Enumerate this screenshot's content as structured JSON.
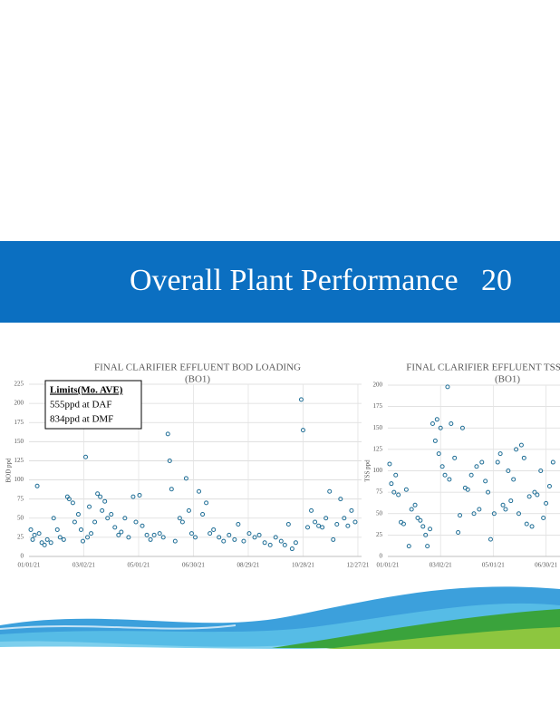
{
  "header": {
    "title": "Overall Plant Performance   20"
  },
  "chart_data": [
    {
      "type": "scatter",
      "title": "FINAL CLARIFIER EFFLUENT BOD LOADING",
      "subtitle": "(BO1)",
      "y_label": "BOD ppd",
      "annotation": [
        "Limits(Mo.    AVE)",
        "555ppd at DAF",
        "834ppd at DMF"
      ],
      "color": "#1f6e96",
      "grid": true,
      "xlim": [
        "2021-01-01",
        "2021-12-31"
      ],
      "xticks": [
        {
          "value": "2021-01-01",
          "label": "01/01/21"
        },
        {
          "value": "2021-03-02",
          "label": "03/02/21"
        },
        {
          "value": "2021-05-01",
          "label": "05/01/21"
        },
        {
          "value": "2021-06-30",
          "label": "06/30/21"
        },
        {
          "value": "2021-08-29",
          "label": "08/29/21"
        },
        {
          "value": "2021-10-28",
          "label": "10/28/21"
        },
        {
          "value": "2021-12-27",
          "label": "12/27/21"
        }
      ],
      "ylim": [
        0,
        225
      ],
      "yticks": [
        0,
        25,
        50,
        75,
        100,
        125,
        150,
        175,
        200,
        225
      ],
      "x": [
        "2021-01-03",
        "2021-01-05",
        "2021-01-07",
        "2021-01-10",
        "2021-01-12",
        "2021-01-15",
        "2021-01-18",
        "2021-01-21",
        "2021-01-25",
        "2021-01-28",
        "2021-02-01",
        "2021-02-04",
        "2021-02-08",
        "2021-02-12",
        "2021-02-14",
        "2021-02-18",
        "2021-02-20",
        "2021-02-24",
        "2021-02-27",
        "2021-03-01",
        "2021-03-04",
        "2021-03-06",
        "2021-03-08",
        "2021-03-10",
        "2021-03-14",
        "2021-03-17",
        "2021-03-20",
        "2021-03-22",
        "2021-03-25",
        "2021-03-28",
        "2021-04-01",
        "2021-04-05",
        "2021-04-09",
        "2021-04-12",
        "2021-04-16",
        "2021-04-20",
        "2021-04-25",
        "2021-04-28",
        "2021-05-02",
        "2021-05-05",
        "2021-05-10",
        "2021-05-14",
        "2021-05-18",
        "2021-05-24",
        "2021-05-28",
        "2021-06-02",
        "2021-06-04",
        "2021-06-06",
        "2021-06-10",
        "2021-06-15",
        "2021-06-18",
        "2021-06-22",
        "2021-06-25",
        "2021-06-28",
        "2021-07-02",
        "2021-07-06",
        "2021-07-10",
        "2021-07-14",
        "2021-07-18",
        "2021-07-22",
        "2021-07-28",
        "2021-08-02",
        "2021-08-08",
        "2021-08-14",
        "2021-08-18",
        "2021-08-24",
        "2021-08-30",
        "2021-09-05",
        "2021-09-10",
        "2021-09-16",
        "2021-09-22",
        "2021-09-28",
        "2021-10-04",
        "2021-10-08",
        "2021-10-12",
        "2021-10-16",
        "2021-10-20",
        "2021-10-26",
        "2021-10-28",
        "2021-11-02",
        "2021-11-06",
        "2021-11-10",
        "2021-11-14",
        "2021-11-18",
        "2021-11-22",
        "2021-11-26",
        "2021-11-30",
        "2021-12-04",
        "2021-12-08",
        "2021-12-12",
        "2021-12-16",
        "2021-12-20",
        "2021-12-24"
      ],
      "values": [
        35,
        22,
        28,
        92,
        30,
        18,
        15,
        22,
        18,
        50,
        35,
        25,
        22,
        78,
        75,
        70,
        45,
        55,
        35,
        20,
        130,
        25,
        65,
        30,
        45,
        82,
        78,
        60,
        72,
        50,
        55,
        38,
        28,
        32,
        50,
        25,
        78,
        45,
        80,
        40,
        28,
        22,
        28,
        30,
        25,
        160,
        125,
        88,
        20,
        50,
        45,
        102,
        60,
        30,
        25,
        85,
        55,
        70,
        30,
        35,
        25,
        20,
        28,
        22,
        42,
        20,
        30,
        25,
        28,
        18,
        15,
        25,
        20,
        15,
        42,
        10,
        18,
        205,
        165,
        38,
        60,
        45,
        40,
        38,
        50,
        85,
        22,
        42,
        75,
        50,
        40,
        60,
        45
      ]
    },
    {
      "type": "scatter",
      "title": "FINAL CLARIFIER EFFLUENT TSS LOADING",
      "subtitle": "(BO1)",
      "y_label": "TSS ppd",
      "color": "#1f6e96",
      "grid": true,
      "xlim": [
        "2021-01-01",
        "2021-12-31"
      ],
      "xticks": [
        {
          "value": "2021-01-01",
          "label": "01/01/21"
        },
        {
          "value": "2021-03-02",
          "label": "03/02/21"
        },
        {
          "value": "2021-05-01",
          "label": "05/01/21"
        },
        {
          "value": "2021-06-30",
          "label": "06/30/21"
        }
      ],
      "ylim": [
        0,
        200
      ],
      "yticks": [
        0,
        25,
        50,
        75,
        100,
        125,
        150,
        175,
        200
      ],
      "x": [
        "2021-01-03",
        "2021-01-05",
        "2021-01-08",
        "2021-01-10",
        "2021-01-13",
        "2021-01-16",
        "2021-01-19",
        "2021-01-22",
        "2021-01-25",
        "2021-01-28",
        "2021-02-01",
        "2021-02-04",
        "2021-02-07",
        "2021-02-10",
        "2021-02-13",
        "2021-02-15",
        "2021-02-18",
        "2021-02-21",
        "2021-02-24",
        "2021-02-26",
        "2021-02-28",
        "2021-03-02",
        "2021-03-04",
        "2021-03-07",
        "2021-03-10",
        "2021-03-12",
        "2021-03-14",
        "2021-03-18",
        "2021-03-22",
        "2021-03-24",
        "2021-03-27",
        "2021-03-30",
        "2021-04-02",
        "2021-04-06",
        "2021-04-09",
        "2021-04-12",
        "2021-04-15",
        "2021-04-18",
        "2021-04-22",
        "2021-04-25",
        "2021-04-28",
        "2021-05-02",
        "2021-05-06",
        "2021-05-09",
        "2021-05-12",
        "2021-05-15",
        "2021-05-18",
        "2021-05-21",
        "2021-05-24",
        "2021-05-27",
        "2021-05-30",
        "2021-06-02",
        "2021-06-05",
        "2021-06-08",
        "2021-06-11",
        "2021-06-14",
        "2021-06-17",
        "2021-06-20",
        "2021-06-24",
        "2021-06-27",
        "2021-06-30",
        "2021-07-04",
        "2021-07-08"
      ],
      "values": [
        108,
        85,
        75,
        95,
        72,
        40,
        38,
        78,
        12,
        55,
        60,
        45,
        42,
        35,
        25,
        12,
        32,
        155,
        135,
        160,
        120,
        150,
        105,
        95,
        198,
        90,
        155,
        115,
        28,
        48,
        150,
        80,
        78,
        95,
        50,
        105,
        55,
        110,
        88,
        75,
        20,
        50,
        110,
        120,
        60,
        55,
        100,
        65,
        90,
        125,
        50,
        130,
        115,
        38,
        70,
        35,
        75,
        72,
        100,
        45,
        62,
        82,
        110
      ]
    }
  ]
}
